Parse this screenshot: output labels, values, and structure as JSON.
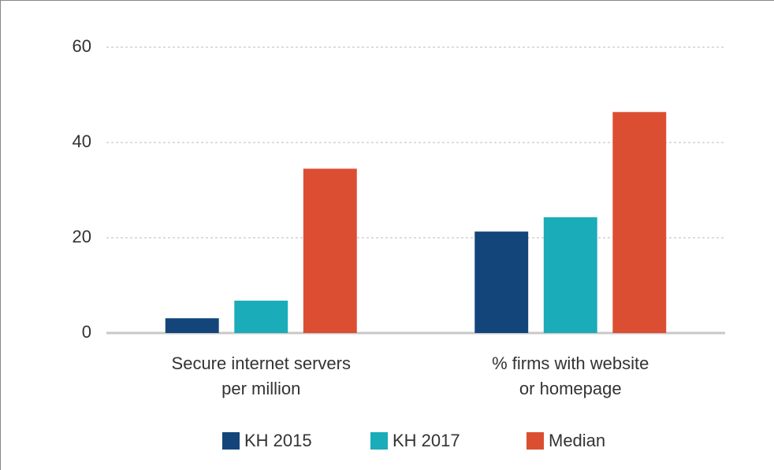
{
  "chart_data": {
    "type": "bar",
    "categories": [
      "Secure internet servers\nper million",
      "% firms with website\nor homepage"
    ],
    "series": [
      {
        "name": "KH 2015",
        "color": "#13457a",
        "values": [
          3.1,
          21.3
        ]
      },
      {
        "name": "KH 2017",
        "color": "#1aacb8",
        "values": [
          6.8,
          24.3
        ]
      },
      {
        "name": "Median",
        "color": "#db4e32",
        "values": [
          34.5,
          46.4
        ]
      }
    ],
    "ylim": [
      0,
      60
    ],
    "yticks": [
      0,
      20,
      40,
      60
    ],
    "grid": true,
    "legend": "bottom"
  }
}
